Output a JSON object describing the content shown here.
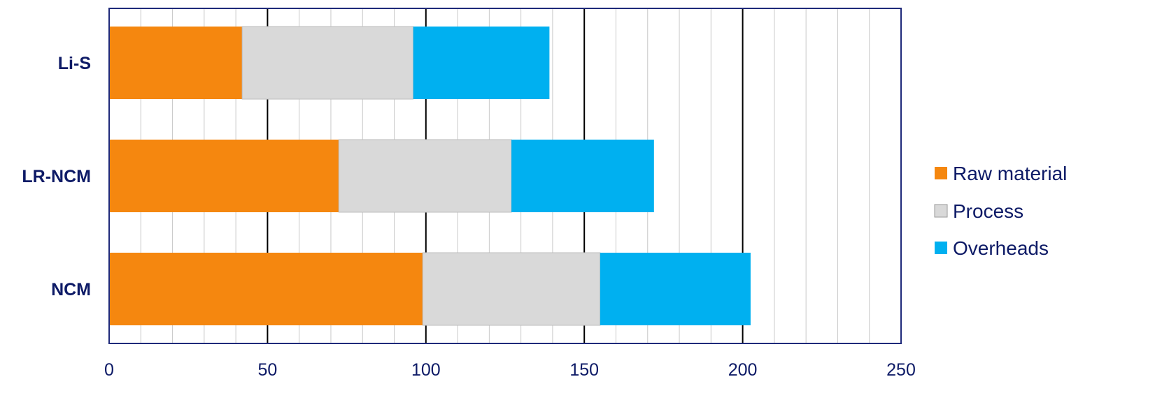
{
  "chart_data": {
    "type": "bar",
    "orientation": "horizontal",
    "stacked": true,
    "categories": [
      "Li-S",
      "LR-NCM",
      "NCM"
    ],
    "series": [
      {
        "name": "Raw material",
        "values": [
          42,
          72.5,
          99
        ],
        "color": "#f5870f"
      },
      {
        "name": "Process",
        "values": [
          54,
          54.5,
          56
        ],
        "color": "#d9d9d9"
      },
      {
        "name": "Overheads",
        "values": [
          43,
          45,
          47.5
        ],
        "color": "#00b0f0"
      }
    ],
    "xlim": [
      0,
      250
    ],
    "xticks": [
      0,
      50,
      100,
      150,
      200,
      250
    ],
    "xtick_labels": [
      "0",
      "50",
      "100",
      "150",
      "200",
      "250"
    ],
    "minor_gridline_step": 10,
    "grid": true,
    "legend_position": "right",
    "title": "",
    "xlabel": "",
    "ylabel": ""
  }
}
